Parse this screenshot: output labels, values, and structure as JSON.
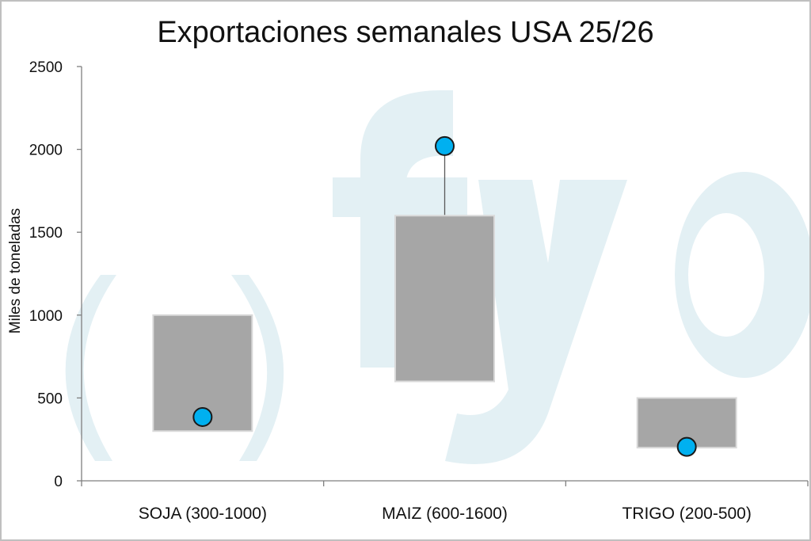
{
  "chart_data": {
    "type": "box-range",
    "title": "Exportaciones semanales USA 25/26",
    "ylabel": "Miles de toneladas",
    "xlabel": "",
    "ylim": [
      0,
      2500
    ],
    "yticks": [
      0,
      500,
      1000,
      1500,
      2000,
      2500
    ],
    "categories": [
      "SOJA (300-1000)",
      "MAIZ (600-1600)",
      "TRIGO (200-500)"
    ],
    "ranges": [
      {
        "low": 300,
        "high": 1000
      },
      {
        "low": 600,
        "high": 1600
      },
      {
        "low": 200,
        "high": 500
      }
    ],
    "values": [
      385,
      2020,
      205
    ],
    "watermark": "fyo",
    "grid": false,
    "colors": {
      "box": "#a6a6a6",
      "box_edge": "#d9d9d9",
      "point": "#00b0f0",
      "point_edge": "#1a1a1a",
      "watermark": "#e3f0f4",
      "axis": "#7f7f7f"
    }
  }
}
